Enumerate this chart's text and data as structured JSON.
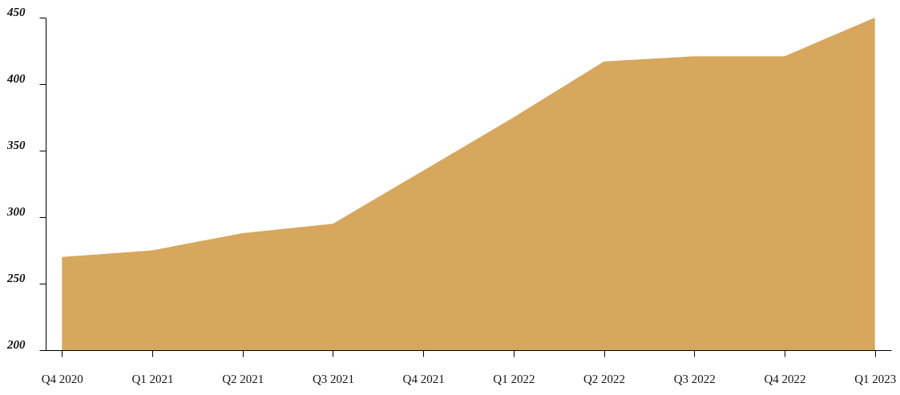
{
  "chart_data": {
    "type": "area",
    "categories": [
      "Q4 2020",
      "Q1 2021",
      "Q2 2021",
      "Q3 2021",
      "Q4 2021",
      "Q1 2022",
      "Q2 2022",
      "Q3 2022",
      "Q4 2022",
      "Q1 2023"
    ],
    "values": [
      270,
      275,
      288,
      295,
      335,
      375,
      417,
      421,
      421,
      450
    ],
    "color": "#d6a75d",
    "ylim": [
      200,
      450
    ],
    "yticks": [
      200,
      250,
      300,
      350,
      400,
      450
    ],
    "grid": false
  }
}
